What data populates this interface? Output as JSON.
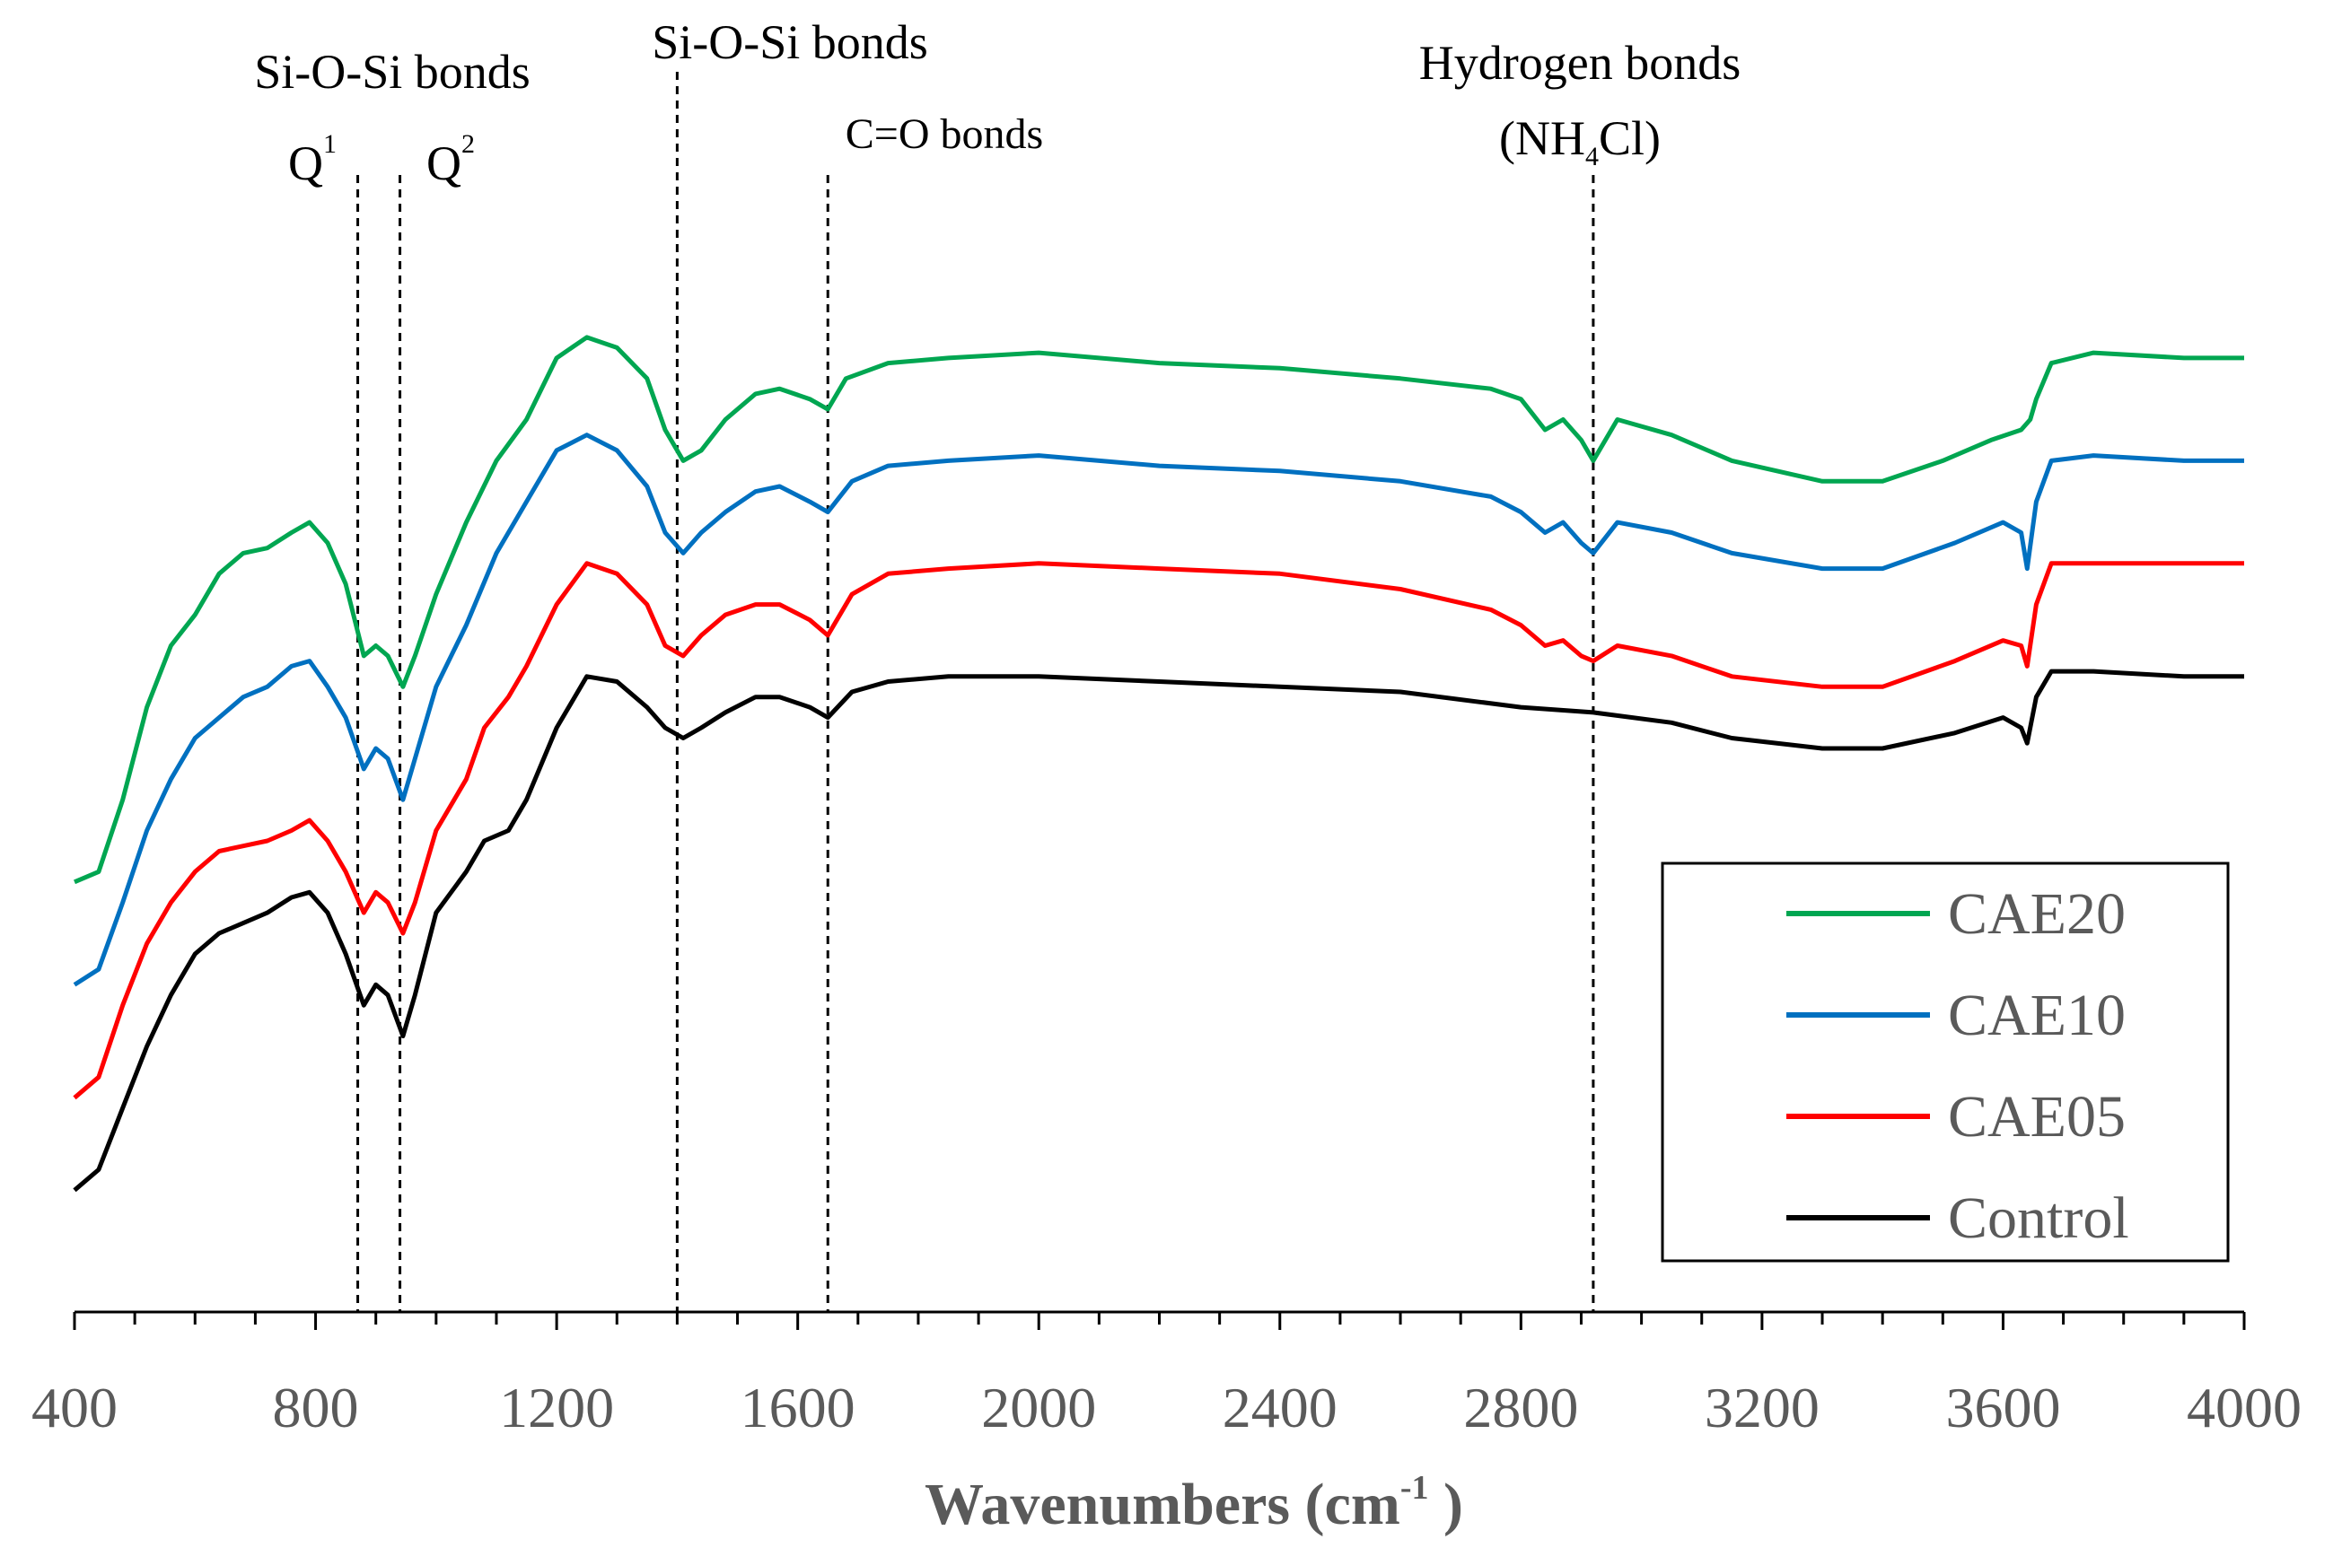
{
  "chart_data": {
    "type": "line",
    "title": "",
    "xlabel": "Wavenumbers (cm",
    "xlabel_sup": "-1",
    "xlabel_close": " )",
    "ylabel": "",
    "xlim": [
      400,
      4000
    ],
    "ylim": [
      0,
      100
    ],
    "x_ticks": [
      400,
      800,
      1200,
      1600,
      2000,
      2400,
      2800,
      3200,
      3600,
      4000
    ],
    "x_tick_labels": [
      "400",
      "800",
      "1200",
      "1600",
      "2000",
      "2400",
      "2800",
      "3200",
      "3600",
      "4000"
    ],
    "grid": false,
    "legend_position": "bottom-right",
    "series": [
      {
        "name": "CAE20",
        "color": "#00A651",
        "points": [
          [
            400,
            36
          ],
          [
            440,
            37
          ],
          [
            480,
            44
          ],
          [
            520,
            53
          ],
          [
            560,
            59
          ],
          [
            600,
            62
          ],
          [
            640,
            66
          ],
          [
            680,
            68
          ],
          [
            720,
            68.5
          ],
          [
            760,
            70
          ],
          [
            790,
            71
          ],
          [
            820,
            69
          ],
          [
            850,
            65
          ],
          [
            880,
            58
          ],
          [
            900,
            59
          ],
          [
            920,
            58
          ],
          [
            945,
            55
          ],
          [
            965,
            58
          ],
          [
            1000,
            64
          ],
          [
            1050,
            71
          ],
          [
            1100,
            77
          ],
          [
            1150,
            81
          ],
          [
            1200,
            87
          ],
          [
            1250,
            89
          ],
          [
            1300,
            88
          ],
          [
            1350,
            85
          ],
          [
            1380,
            80
          ],
          [
            1410,
            77
          ],
          [
            1440,
            78
          ],
          [
            1480,
            81
          ],
          [
            1530,
            83.5
          ],
          [
            1570,
            84
          ],
          [
            1620,
            83
          ],
          [
            1650,
            82
          ],
          [
            1680,
            85
          ],
          [
            1750,
            86.5
          ],
          [
            1850,
            87
          ],
          [
            2000,
            87.5
          ],
          [
            2200,
            86.5
          ],
          [
            2400,
            86
          ],
          [
            2600,
            85
          ],
          [
            2750,
            84
          ],
          [
            2800,
            83
          ],
          [
            2840,
            80
          ],
          [
            2870,
            81
          ],
          [
            2900,
            79
          ],
          [
            2920,
            77
          ],
          [
            2960,
            81
          ],
          [
            3050,
            79.5
          ],
          [
            3150,
            77
          ],
          [
            3300,
            75
          ],
          [
            3400,
            75
          ],
          [
            3500,
            77
          ],
          [
            3580,
            79
          ],
          [
            3630,
            80
          ],
          [
            3645,
            81
          ],
          [
            3655,
            83
          ],
          [
            3680,
            86.5
          ],
          [
            3750,
            87.5
          ],
          [
            3900,
            87
          ],
          [
            4000,
            87
          ]
        ]
      },
      {
        "name": "CAE10",
        "color": "#0070C0",
        "points": [
          [
            400,
            26
          ],
          [
            440,
            27.5
          ],
          [
            480,
            34
          ],
          [
            520,
            41
          ],
          [
            560,
            46
          ],
          [
            600,
            50
          ],
          [
            640,
            52
          ],
          [
            680,
            54
          ],
          [
            720,
            55
          ],
          [
            760,
            57
          ],
          [
            790,
            57.5
          ],
          [
            820,
            55
          ],
          [
            850,
            52
          ],
          [
            880,
            47
          ],
          [
            900,
            49
          ],
          [
            920,
            48
          ],
          [
            945,
            44
          ],
          [
            965,
            48
          ],
          [
            1000,
            55
          ],
          [
            1050,
            61
          ],
          [
            1100,
            68
          ],
          [
            1150,
            73
          ],
          [
            1200,
            78
          ],
          [
            1250,
            79.5
          ],
          [
            1300,
            78
          ],
          [
            1350,
            74.5
          ],
          [
            1380,
            70
          ],
          [
            1410,
            68
          ],
          [
            1440,
            70
          ],
          [
            1480,
            72
          ],
          [
            1530,
            74
          ],
          [
            1570,
            74.5
          ],
          [
            1620,
            73
          ],
          [
            1650,
            72
          ],
          [
            1690,
            75
          ],
          [
            1750,
            76.5
          ],
          [
            1850,
            77
          ],
          [
            2000,
            77.5
          ],
          [
            2200,
            76.5
          ],
          [
            2400,
            76
          ],
          [
            2600,
            75
          ],
          [
            2750,
            73.5
          ],
          [
            2800,
            72
          ],
          [
            2840,
            70
          ],
          [
            2870,
            71
          ],
          [
            2900,
            69
          ],
          [
            2920,
            68
          ],
          [
            2960,
            71
          ],
          [
            3050,
            70
          ],
          [
            3150,
            68
          ],
          [
            3300,
            66.5
          ],
          [
            3400,
            66.5
          ],
          [
            3520,
            69
          ],
          [
            3600,
            71
          ],
          [
            3630,
            70
          ],
          [
            3640,
            66.5
          ],
          [
            3655,
            73
          ],
          [
            3680,
            77
          ],
          [
            3750,
            77.5
          ],
          [
            3900,
            77
          ],
          [
            4000,
            77
          ]
        ]
      },
      {
        "name": "CAE05",
        "color": "#FF0000",
        "points": [
          [
            400,
            15
          ],
          [
            440,
            17
          ],
          [
            480,
            24
          ],
          [
            520,
            30
          ],
          [
            560,
            34
          ],
          [
            600,
            37
          ],
          [
            640,
            39
          ],
          [
            680,
            39.5
          ],
          [
            720,
            40
          ],
          [
            760,
            41
          ],
          [
            790,
            42
          ],
          [
            820,
            40
          ],
          [
            850,
            37
          ],
          [
            880,
            33
          ],
          [
            900,
            35
          ],
          [
            920,
            34
          ],
          [
            945,
            31
          ],
          [
            965,
            34
          ],
          [
            1000,
            41
          ],
          [
            1050,
            46
          ],
          [
            1080,
            51
          ],
          [
            1120,
            54
          ],
          [
            1150,
            57
          ],
          [
            1200,
            63
          ],
          [
            1250,
            67
          ],
          [
            1300,
            66
          ],
          [
            1350,
            63
          ],
          [
            1380,
            59
          ],
          [
            1410,
            58
          ],
          [
            1440,
            60
          ],
          [
            1480,
            62
          ],
          [
            1530,
            63
          ],
          [
            1570,
            63
          ],
          [
            1620,
            61.5
          ],
          [
            1650,
            60
          ],
          [
            1690,
            64
          ],
          [
            1750,
            66
          ],
          [
            1850,
            66.5
          ],
          [
            2000,
            67
          ],
          [
            2200,
            66.5
          ],
          [
            2400,
            66
          ],
          [
            2600,
            64.5
          ],
          [
            2750,
            62.5
          ],
          [
            2800,
            61
          ],
          [
            2840,
            59
          ],
          [
            2870,
            59.5
          ],
          [
            2900,
            58
          ],
          [
            2920,
            57.5
          ],
          [
            2960,
            59
          ],
          [
            3050,
            58
          ],
          [
            3150,
            56
          ],
          [
            3300,
            55
          ],
          [
            3400,
            55
          ],
          [
            3520,
            57.5
          ],
          [
            3600,
            59.5
          ],
          [
            3630,
            59
          ],
          [
            3640,
            57
          ],
          [
            3655,
            63
          ],
          [
            3680,
            67
          ],
          [
            3750,
            67
          ],
          [
            3900,
            67
          ],
          [
            4000,
            67
          ]
        ]
      },
      {
        "name": "Control",
        "color": "#000000",
        "points": [
          [
            400,
            6
          ],
          [
            440,
            8
          ],
          [
            480,
            14
          ],
          [
            520,
            20
          ],
          [
            560,
            25
          ],
          [
            600,
            29
          ],
          [
            640,
            31
          ],
          [
            680,
            32
          ],
          [
            720,
            33
          ],
          [
            760,
            34.5
          ],
          [
            790,
            35
          ],
          [
            820,
            33
          ],
          [
            850,
            29
          ],
          [
            880,
            24
          ],
          [
            900,
            26
          ],
          [
            920,
            25
          ],
          [
            945,
            21
          ],
          [
            965,
            25
          ],
          [
            1000,
            33
          ],
          [
            1050,
            37
          ],
          [
            1080,
            40
          ],
          [
            1120,
            41
          ],
          [
            1150,
            44
          ],
          [
            1200,
            51
          ],
          [
            1250,
            56
          ],
          [
            1300,
            55.5
          ],
          [
            1350,
            53
          ],
          [
            1380,
            51
          ],
          [
            1410,
            50
          ],
          [
            1440,
            51
          ],
          [
            1480,
            52.5
          ],
          [
            1530,
            54
          ],
          [
            1570,
            54
          ],
          [
            1620,
            53
          ],
          [
            1650,
            52
          ],
          [
            1690,
            54.5
          ],
          [
            1750,
            55.5
          ],
          [
            1850,
            56
          ],
          [
            2000,
            56
          ],
          [
            2200,
            55.5
          ],
          [
            2400,
            55
          ],
          [
            2600,
            54.5
          ],
          [
            2800,
            53
          ],
          [
            2920,
            52.5
          ],
          [
            3050,
            51.5
          ],
          [
            3150,
            50
          ],
          [
            3300,
            49
          ],
          [
            3400,
            49
          ],
          [
            3520,
            50.5
          ],
          [
            3600,
            52
          ],
          [
            3630,
            51
          ],
          [
            3640,
            49.5
          ],
          [
            3655,
            54
          ],
          [
            3680,
            56.5
          ],
          [
            3750,
            56.5
          ],
          [
            3900,
            56
          ],
          [
            4000,
            56
          ]
        ]
      }
    ],
    "annotations": [
      {
        "id": "si-o-si-left",
        "x": 870,
        "x2": 940,
        "label": "Si-O-Si bonds"
      },
      {
        "id": "q1",
        "x": 870,
        "label": "Q",
        "sup": "1"
      },
      {
        "id": "q2",
        "x": 940,
        "label": "Q",
        "sup": "2"
      },
      {
        "id": "si-o-si-right",
        "x": 1400,
        "label": "Si-O-Si bonds"
      },
      {
        "id": "co",
        "x": 1650,
        "label": "C=O bonds"
      },
      {
        "id": "hydrogen",
        "x": 2920,
        "label": "Hydrogen bonds",
        "line2_open": "(NH",
        "line2_sub": "4",
        "line2_close": "Cl)"
      }
    ]
  }
}
